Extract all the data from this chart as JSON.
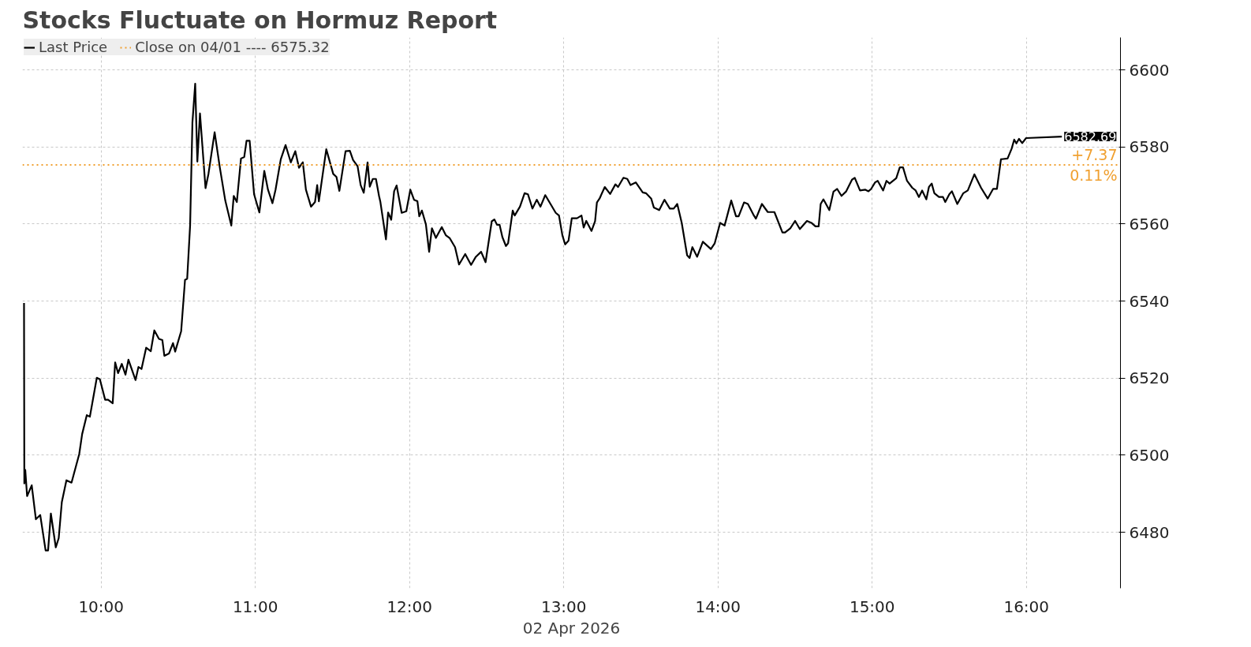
{
  "chart_data": {
    "type": "line",
    "title": "Stocks Fluctuate on Hormuz Report",
    "xlabel": "02 Apr 2026",
    "x": [
      9.5,
      9.502,
      9.508,
      9.52,
      9.55,
      9.577,
      9.605,
      9.64,
      9.656,
      9.674,
      9.706,
      9.725,
      9.745,
      9.775,
      9.808,
      9.858,
      9.877,
      9.907,
      9.927,
      9.972,
      9.992,
      10.026,
      10.045,
      10.075,
      10.091,
      10.11,
      10.134,
      10.158,
      10.177,
      10.223,
      10.242,
      10.262,
      10.292,
      10.322,
      10.345,
      10.375,
      10.397,
      10.41,
      10.44,
      10.466,
      10.48,
      10.519,
      10.544,
      10.558,
      10.577,
      10.592,
      10.61,
      10.624,
      10.641,
      10.677,
      10.696,
      10.736,
      10.77,
      10.805,
      10.844,
      10.86,
      10.88,
      10.907,
      10.928,
      10.943,
      10.963,
      10.992,
      11.026,
      11.058,
      11.082,
      11.111,
      11.131,
      11.165,
      11.196,
      11.23,
      11.259,
      11.283,
      11.308,
      11.328,
      11.361,
      11.387,
      11.401,
      11.412,
      11.46,
      11.505,
      11.526,
      11.545,
      11.585,
      11.613,
      11.634,
      11.663,
      11.683,
      11.703,
      11.728,
      11.742,
      11.762,
      11.782,
      11.802,
      11.811,
      11.847,
      11.861,
      11.881,
      11.9,
      11.916,
      11.949,
      11.979,
      12.005,
      12.029,
      12.051,
      12.063,
      12.08,
      12.106,
      12.127,
      12.145,
      12.171,
      12.209,
      12.235,
      12.261,
      12.295,
      12.321,
      12.361,
      12.399,
      12.43,
      12.464,
      12.493,
      12.533,
      12.55,
      12.567,
      12.584,
      12.602,
      12.625,
      12.639,
      12.669,
      12.682,
      12.716,
      12.746,
      12.768,
      12.797,
      12.825,
      12.849,
      12.88,
      12.914,
      12.948,
      12.969,
      12.991,
      13.009,
      13.031,
      13.052,
      13.086,
      13.115,
      13.129,
      13.146,
      13.18,
      13.203,
      13.215,
      13.232,
      13.266,
      13.301,
      13.335,
      13.352,
      13.387,
      13.412,
      13.433,
      13.467,
      13.512,
      13.533,
      13.567,
      13.584,
      13.619,
      13.653,
      13.688,
      13.713,
      13.736,
      13.765,
      13.8,
      13.816,
      13.834,
      13.865,
      13.902,
      13.954,
      13.979,
      14.014,
      14.043,
      14.086,
      14.117,
      14.134,
      14.169,
      14.194,
      14.233,
      14.246,
      14.285,
      14.323,
      14.366,
      14.418,
      14.435,
      14.469,
      14.5,
      14.531,
      14.577,
      14.606,
      14.632,
      14.653,
      14.666,
      14.684,
      14.722,
      14.749,
      14.773,
      14.801,
      14.83,
      14.869,
      14.887,
      14.921,
      14.956,
      14.976,
      14.993,
      15.019,
      15.036,
      15.071,
      15.093,
      15.113,
      15.156,
      15.179,
      15.2,
      15.226,
      15.26,
      15.282,
      15.303,
      15.324,
      15.351,
      15.368,
      15.386,
      15.403,
      15.433,
      15.459,
      15.474,
      15.5,
      15.517,
      15.552,
      15.591,
      15.62,
      15.663,
      15.706,
      15.749,
      15.784,
      15.809,
      15.835,
      15.878,
      15.904,
      15.921,
      15.935,
      15.952,
      15.973,
      15.998,
      16.23
    ],
    "series": [
      {
        "name": "Last Price",
        "color": "#000000",
        "values": [
          6539.5,
          6492.7,
          6496.2,
          6489.4,
          6492.2,
          6483.4,
          6484.5,
          6475.3,
          6475.3,
          6484.9,
          6476.1,
          6478.5,
          6487.8,
          6493.5,
          6492.9,
          6500.3,
          6505.5,
          6510.4,
          6510,
          6520.1,
          6519.7,
          6514.4,
          6514.4,
          6513.5,
          6524.1,
          6521.3,
          6523.7,
          6520.9,
          6524.8,
          6519.5,
          6522.9,
          6522.4,
          6527.9,
          6527,
          6532.4,
          6530.2,
          6529.9,
          6525.8,
          6526.4,
          6529.1,
          6526.9,
          6532.2,
          6545.5,
          6545.8,
          6559.6,
          6586.3,
          6596.4,
          6576.2,
          6588.7,
          6569.3,
          6573,
          6583.8,
          6574.6,
          6566.1,
          6559.6,
          6567.3,
          6565.7,
          6577,
          6577.4,
          6581.6,
          6581.6,
          6567.7,
          6563,
          6573.8,
          6568.9,
          6565.4,
          6568.9,
          6576.8,
          6580.5,
          6576,
          6578.9,
          6574.6,
          6576,
          6568.9,
          6564.5,
          6565.7,
          6570.1,
          6565.9,
          6579.4,
          6573,
          6572.2,
          6568.6,
          6578.9,
          6579,
          6576.6,
          6575,
          6570.1,
          6568.1,
          6576,
          6569.7,
          6571.7,
          6571.7,
          6567.3,
          6565.7,
          6556,
          6563,
          6561.1,
          6568.5,
          6570,
          6562.9,
          6563.3,
          6568.9,
          6566.3,
          6565.9,
          6562,
          6563.5,
          6559.9,
          6552.8,
          6558.9,
          6556.4,
          6559.2,
          6557.1,
          6556.3,
          6554,
          6549.5,
          6552.2,
          6549.4,
          6551.5,
          6552.8,
          6550.1,
          6560.7,
          6561.2,
          6559.8,
          6559.8,
          6556.6,
          6554.3,
          6555,
          6563.5,
          6562.2,
          6564.5,
          6568,
          6567.7,
          6564,
          6566.3,
          6564.5,
          6567.5,
          6565.2,
          6562.9,
          6562.2,
          6557.1,
          6554.7,
          6555.7,
          6561.5,
          6561.5,
          6562.2,
          6559.1,
          6560.8,
          6558.2,
          6560.7,
          6565.6,
          6566.6,
          6569.6,
          6567.8,
          6570.3,
          6569.6,
          6572,
          6571.7,
          6570.1,
          6570.8,
          6568.2,
          6568,
          6566.6,
          6564.3,
          6563.6,
          6566.3,
          6564,
          6564,
          6565.2,
          6560.3,
          6551.9,
          6551.2,
          6554,
          6551.5,
          6555.4,
          6553.5,
          6555,
          6560.3,
          6559.6,
          6566.1,
          6562,
          6562,
          6565.6,
          6565.2,
          6562.2,
          6561.4,
          6565.2,
          6563.1,
          6563.1,
          6557.8,
          6557.8,
          6558.9,
          6560.8,
          6558.7,
          6560.8,
          6560.3,
          6559.4,
          6559.4,
          6565.2,
          6566.4,
          6563.6,
          6568.4,
          6569.1,
          6567.3,
          6568.4,
          6571.5,
          6572,
          6568.7,
          6568.9,
          6568.5,
          6569.1,
          6570.8,
          6571.2,
          6568.7,
          6571.2,
          6570.5,
          6571.9,
          6574.7,
          6574.7,
          6571.2,
          6569.4,
          6568.7,
          6567,
          6568.7,
          6566.4,
          6569.6,
          6570.5,
          6568,
          6567,
          6567,
          6565.7,
          6567.7,
          6568.5,
          6565.2,
          6568,
          6568.7,
          6572.9,
          6569.4,
          6566.6,
          6569.1,
          6569.1,
          6576.8,
          6577,
          6579.5,
          6581.9,
          6580.9,
          6582.1,
          6581,
          6582.3,
          6582.69
        ]
      }
    ],
    "ref_lines": [
      {
        "axis": "y",
        "value": 6575.32,
        "label": "Close on 04/01 ---- 6575.32",
        "color": "#f0a030",
        "line_style": "dotted"
      }
    ],
    "annotations": [
      {
        "text": "6582.69",
        "x": 16.23,
        "y": 6582.69
      },
      "+7.37",
      "0.11%"
    ],
    "xlim": [
      9.49,
      16.61
    ],
    "ylim": [
      6465.5,
      6608.4
    ],
    "xticks": [
      {
        "value": 10,
        "label": "10:00"
      },
      {
        "value": 11,
        "label": "11:00"
      },
      {
        "value": 12,
        "label": "12:00"
      },
      {
        "value": 13,
        "label": "13:00"
      },
      {
        "value": 14,
        "label": "14:00"
      },
      {
        "value": 15,
        "label": "15:00"
      },
      {
        "value": 16,
        "label": "16:00"
      }
    ],
    "yticks": [
      6480,
      6500,
      6520,
      6540,
      6560,
      6580,
      6600
    ],
    "grid": true,
    "legend": "top left",
    "marker": "none",
    "line_style": "solid"
  }
}
